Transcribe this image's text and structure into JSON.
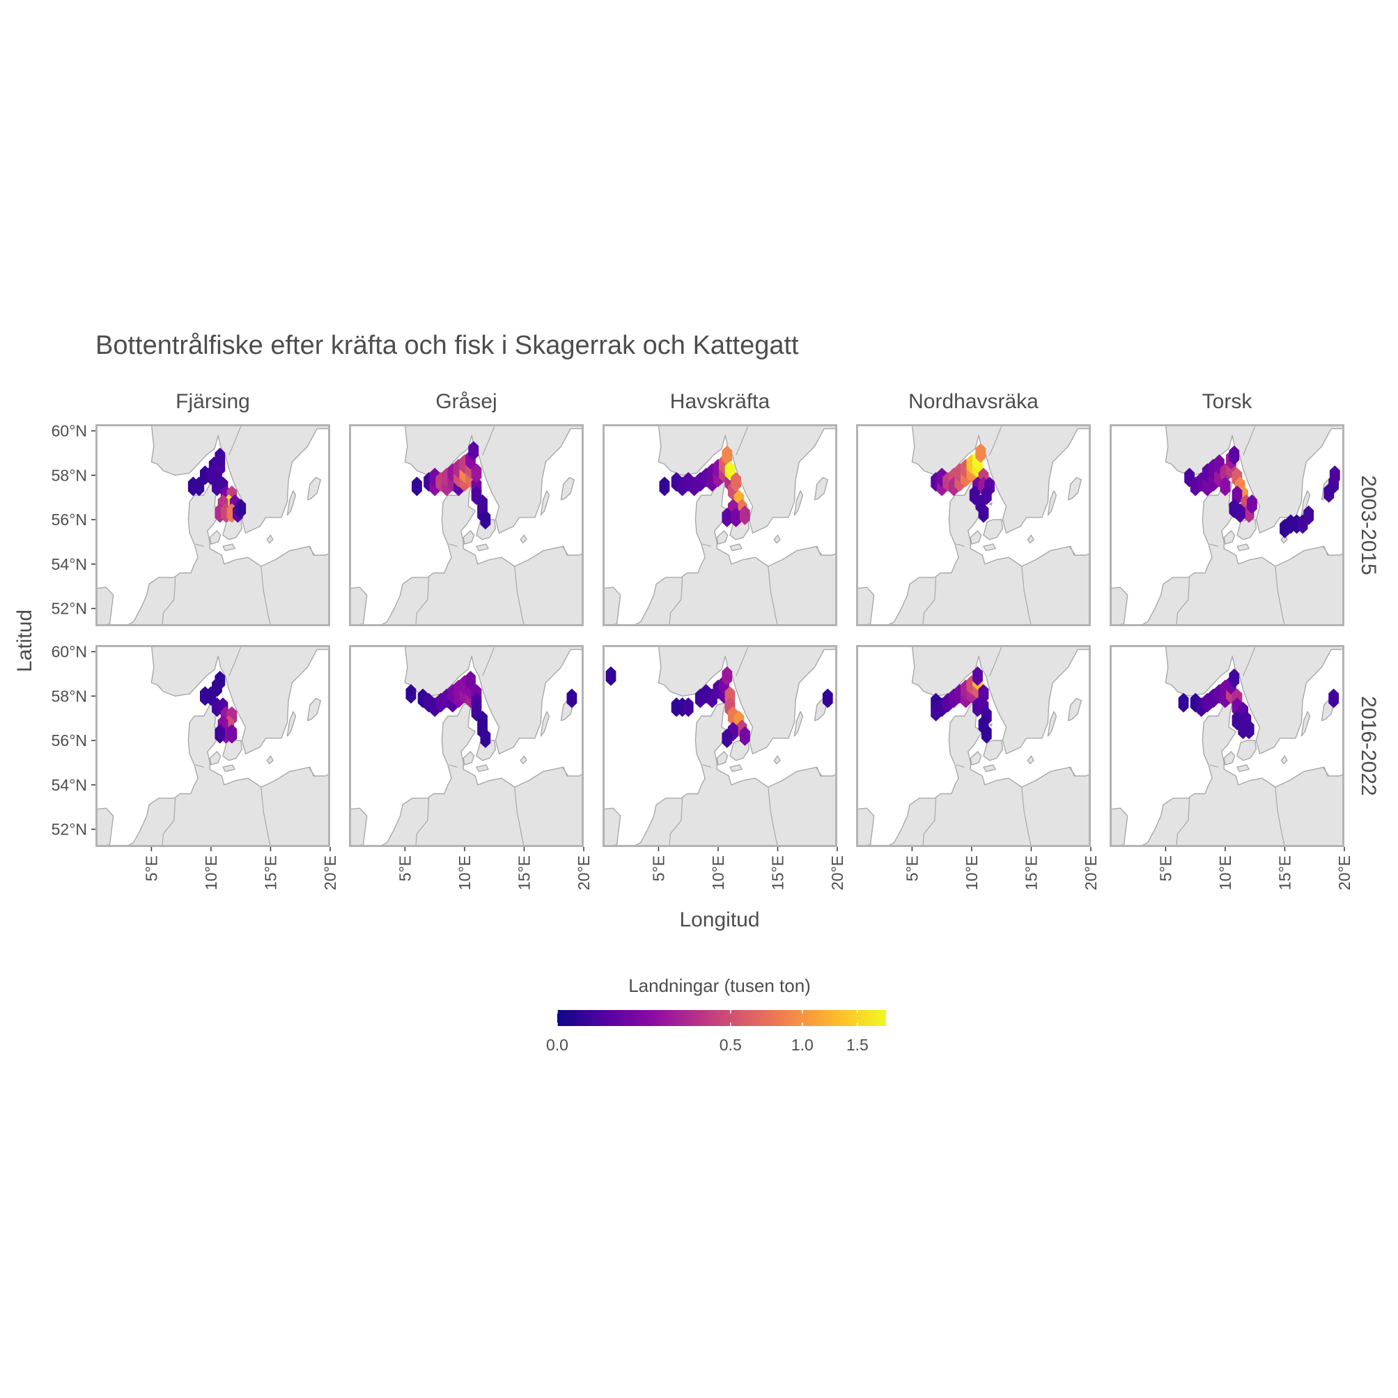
{
  "title": "Bottentrålfiske efter kräfta och fisk i Skagerrak och Kattegatt",
  "xlabel": "Longitud",
  "ylabel": "Latitud",
  "columns": [
    "Fjärsing",
    "Gråsej",
    "Havskräfta",
    "Nordhavsräka",
    "Torsk"
  ],
  "rows": [
    "2003-2015",
    "2016-2022"
  ],
  "x_ticks": [
    "5°E",
    "10°E",
    "15°E",
    "20°E"
  ],
  "y_ticks": [
    "52°N",
    "54°N",
    "56°N",
    "58°N",
    "60°N"
  ],
  "legend": {
    "title": "Landningar (tusen ton)",
    "tick_labels": [
      "0.0",
      "0.5",
      "1.0",
      "1.5"
    ]
  },
  "colors": {
    "land": "#e3e3e3",
    "coast": "#a8a8a8",
    "panel_border": "#b3b3b3",
    "text": "#4d4d4d",
    "scale": [
      "#0d0887",
      "#5302a3",
      "#8b0aa5",
      "#b83289",
      "#db5c68",
      "#f48849",
      "#febd2a",
      "#f0f921"
    ]
  },
  "chart_data": {
    "type": "heatmap",
    "map": "hexbin",
    "title": "Bottentrålfiske efter kräfta och fisk i Skagerrak och Kattegatt",
    "xlabel": "Longitud",
    "ylabel": "Latitud",
    "xlim": [
      0.3,
      20
    ],
    "ylim": [
      51.2,
      60.3
    ],
    "x_ticks": [
      5,
      10,
      15,
      20
    ],
    "y_ticks": [
      52,
      54,
      56,
      58,
      60
    ],
    "color_scale": {
      "name": "plasma",
      "transform": "sqrt",
      "range": [
        0,
        1.8
      ],
      "ticks": [
        0,
        0.5,
        1.0,
        1.5
      ]
    },
    "hex_size_deg": {
      "dx": 0.5,
      "dy": 0.44
    },
    "panels": [
      {
        "species": "Fjärsing",
        "period": "2003-2015",
        "cells": [
          [
            8.5,
            57.5,
            0.01
          ],
          [
            9.0,
            57.5,
            0.01
          ],
          [
            9.5,
            58.0,
            0.01
          ],
          [
            10.0,
            58.0,
            0.02
          ],
          [
            10.5,
            58.0,
            0.02
          ],
          [
            10.25,
            58.4,
            0.02
          ],
          [
            10.75,
            58.4,
            0.03
          ],
          [
            10.75,
            58.8,
            0.02
          ],
          [
            10.5,
            57.5,
            0.02
          ],
          [
            11.0,
            57.5,
            0.02
          ],
          [
            11.25,
            57.1,
            0.1
          ],
          [
            11.75,
            57.1,
            0.4
          ],
          [
            11.5,
            56.7,
            1.6
          ],
          [
            11.0,
            56.7,
            0.35
          ],
          [
            12.0,
            56.7,
            0.1
          ],
          [
            10.75,
            56.3,
            0.3
          ],
          [
            11.25,
            56.3,
            0.45
          ],
          [
            11.75,
            56.3,
            0.8
          ],
          [
            12.25,
            56.3,
            0.05
          ],
          [
            12.5,
            56.5,
            0.01
          ]
        ]
      },
      {
        "species": "Gråsej",
        "period": "2003-2015",
        "cells": [
          [
            6.0,
            57.5,
            0.01
          ],
          [
            7.0,
            57.7,
            0.02
          ],
          [
            7.5,
            57.5,
            0.15
          ],
          [
            7.5,
            57.9,
            0.1
          ],
          [
            8.0,
            57.7,
            0.4
          ],
          [
            8.5,
            57.5,
            0.3
          ],
          [
            8.5,
            57.9,
            0.35
          ],
          [
            9.0,
            57.7,
            0.25
          ],
          [
            9.0,
            58.1,
            0.2
          ],
          [
            9.5,
            57.5,
            0.05
          ],
          [
            9.5,
            57.9,
            0.5
          ],
          [
            9.5,
            58.3,
            0.3
          ],
          [
            10.0,
            57.7,
            0.6
          ],
          [
            10.0,
            58.1,
            0.9
          ],
          [
            10.0,
            58.5,
            0.4
          ],
          [
            10.5,
            57.9,
            0.7
          ],
          [
            10.5,
            58.3,
            0.5
          ],
          [
            10.5,
            58.7,
            0.15
          ],
          [
            10.75,
            59.1,
            0.05
          ],
          [
            11.0,
            57.5,
            0.1
          ],
          [
            11.0,
            58.1,
            0.2
          ],
          [
            11.0,
            57.1,
            0.03
          ],
          [
            11.5,
            56.7,
            0.02
          ],
          [
            11.5,
            56.3,
            0.02
          ],
          [
            11.75,
            56.0,
            0.01
          ]
        ]
      },
      {
        "species": "Havskräfta",
        "period": "2003-2015",
        "cells": [
          [
            5.5,
            57.5,
            0.01
          ],
          [
            6.5,
            57.7,
            0.02
          ],
          [
            7.0,
            57.5,
            0.03
          ],
          [
            7.5,
            57.7,
            0.04
          ],
          [
            8.0,
            57.5,
            0.05
          ],
          [
            8.5,
            57.7,
            0.05
          ],
          [
            9.0,
            57.9,
            0.06
          ],
          [
            9.5,
            57.7,
            0.1
          ],
          [
            9.5,
            58.1,
            0.08
          ],
          [
            10.0,
            57.9,
            0.2
          ],
          [
            10.0,
            58.3,
            0.15
          ],
          [
            10.5,
            58.1,
            0.4
          ],
          [
            10.5,
            58.5,
            0.6
          ],
          [
            10.75,
            58.9,
            0.9
          ],
          [
            11.0,
            57.7,
            0.3
          ],
          [
            11.0,
            58.2,
            1.8
          ],
          [
            11.25,
            57.3,
            0.5
          ],
          [
            11.5,
            57.7,
            0.7
          ],
          [
            11.75,
            56.9,
            1.2
          ],
          [
            12.0,
            56.5,
            0.8
          ],
          [
            11.25,
            56.5,
            0.2
          ],
          [
            10.75,
            56.1,
            0.05
          ],
          [
            11.5,
            56.1,
            0.1
          ],
          [
            12.25,
            56.2,
            0.3
          ]
        ]
      },
      {
        "species": "Nordhavsräka",
        "period": "2003-2015",
        "cells": [
          [
            7.0,
            57.7,
            0.05
          ],
          [
            7.5,
            57.5,
            0.2
          ],
          [
            7.5,
            57.9,
            0.1
          ],
          [
            8.0,
            57.7,
            0.4
          ],
          [
            8.5,
            57.9,
            0.5
          ],
          [
            8.5,
            57.5,
            0.3
          ],
          [
            9.0,
            57.7,
            0.6
          ],
          [
            9.0,
            58.1,
            0.5
          ],
          [
            9.5,
            57.9,
            0.8
          ],
          [
            9.5,
            58.3,
            0.6
          ],
          [
            10.0,
            58.1,
            1.0
          ],
          [
            10.0,
            58.5,
            1.4
          ],
          [
            10.5,
            58.3,
            1.7
          ],
          [
            10.5,
            58.7,
            1.8
          ],
          [
            10.75,
            59.0,
            0.9
          ],
          [
            11.0,
            57.9,
            0.4
          ],
          [
            10.5,
            57.5,
            0.1
          ],
          [
            11.0,
            57.5,
            0.2
          ],
          [
            11.5,
            57.5,
            0.05
          ],
          [
            11.25,
            57.1,
            0.03
          ],
          [
            10.75,
            56.7,
            0.02
          ],
          [
            11.0,
            56.3,
            0.02
          ],
          [
            10.25,
            57.1,
            0.02
          ]
        ]
      },
      {
        "species": "Torsk",
        "period": "2003-2015",
        "cells": [
          [
            7.0,
            57.9,
            0.03
          ],
          [
            7.5,
            57.5,
            0.05
          ],
          [
            8.0,
            57.7,
            0.06
          ],
          [
            8.5,
            57.5,
            0.1
          ],
          [
            8.5,
            58.1,
            0.05
          ],
          [
            9.0,
            57.7,
            0.1
          ],
          [
            9.0,
            58.3,
            0.08
          ],
          [
            9.5,
            57.9,
            0.2
          ],
          [
            9.5,
            58.5,
            0.1
          ],
          [
            10.0,
            58.1,
            0.3
          ],
          [
            10.0,
            57.5,
            0.15
          ],
          [
            10.5,
            58.3,
            0.4
          ],
          [
            10.5,
            58.7,
            0.2
          ],
          [
            10.75,
            58.9,
            0.05
          ],
          [
            11.0,
            57.9,
            0.6
          ],
          [
            11.25,
            57.5,
            0.9
          ],
          [
            11.5,
            57.1,
            1.0
          ],
          [
            11.0,
            57.1,
            0.1
          ],
          [
            11.75,
            56.7,
            0.5
          ],
          [
            12.0,
            56.3,
            0.3
          ],
          [
            11.25,
            56.3,
            0.03
          ],
          [
            10.75,
            56.5,
            0.02
          ],
          [
            12.25,
            56.7,
            0.1
          ],
          [
            15.0,
            55.6,
            0.01
          ],
          [
            15.5,
            55.8,
            0.01
          ],
          [
            16.0,
            55.8,
            0.01
          ],
          [
            16.5,
            55.8,
            0.02
          ],
          [
            17.0,
            56.2,
            0.02
          ],
          [
            18.7,
            57.2,
            0.02
          ],
          [
            19.1,
            57.6,
            0.02
          ],
          [
            19.2,
            58.0,
            0.03
          ]
        ]
      },
      {
        "species": "Fjärsing",
        "period": "2016-2022",
        "cells": [
          [
            9.5,
            58.0,
            0.01
          ],
          [
            10.0,
            58.0,
            0.01
          ],
          [
            10.5,
            58.4,
            0.01
          ],
          [
            10.75,
            58.7,
            0.01
          ],
          [
            10.5,
            57.5,
            0.02
          ],
          [
            11.0,
            57.5,
            0.03
          ],
          [
            11.25,
            57.1,
            0.2
          ],
          [
            11.75,
            57.1,
            0.3
          ],
          [
            11.5,
            56.7,
            0.5
          ],
          [
            11.0,
            56.7,
            0.15
          ],
          [
            11.25,
            56.3,
            0.15
          ],
          [
            11.75,
            56.3,
            0.1
          ],
          [
            10.75,
            56.3,
            0.02
          ]
        ]
      },
      {
        "species": "Gråsej",
        "period": "2016-2022",
        "cells": [
          [
            5.5,
            58.1,
            0.01
          ],
          [
            6.5,
            57.9,
            0.01
          ],
          [
            7.0,
            57.7,
            0.02
          ],
          [
            7.5,
            57.5,
            0.02
          ],
          [
            8.0,
            57.7,
            0.05
          ],
          [
            8.5,
            57.9,
            0.06
          ],
          [
            9.0,
            57.7,
            0.04
          ],
          [
            9.0,
            58.1,
            0.1
          ],
          [
            9.5,
            57.9,
            0.15
          ],
          [
            9.5,
            58.3,
            0.15
          ],
          [
            10.0,
            58.1,
            0.2
          ],
          [
            10.0,
            58.5,
            0.15
          ],
          [
            10.5,
            57.9,
            0.25
          ],
          [
            10.5,
            58.3,
            0.15
          ],
          [
            10.5,
            58.7,
            0.1
          ],
          [
            11.0,
            58.1,
            0.1
          ],
          [
            11.0,
            57.7,
            0.03
          ],
          [
            11.0,
            57.3,
            0.02
          ],
          [
            11.5,
            56.9,
            0.01
          ],
          [
            11.5,
            56.5,
            0.01
          ],
          [
            11.75,
            56.1,
            0.01
          ],
          [
            19.0,
            57.9,
            0.01
          ]
        ]
      },
      {
        "species": "Havskräfta",
        "period": "2016-2022",
        "cells": [
          [
            1.0,
            58.9,
            0.01
          ],
          [
            6.5,
            57.5,
            0.01
          ],
          [
            7.0,
            57.5,
            0.01
          ],
          [
            7.5,
            57.5,
            0.02
          ],
          [
            8.5,
            57.9,
            0.02
          ],
          [
            9.0,
            58.1,
            0.02
          ],
          [
            9.5,
            57.9,
            0.03
          ],
          [
            10.0,
            58.3,
            0.04
          ],
          [
            10.5,
            58.1,
            0.06
          ],
          [
            10.5,
            58.5,
            0.1
          ],
          [
            10.75,
            58.9,
            0.2
          ],
          [
            11.0,
            58.0,
            0.6
          ],
          [
            11.0,
            57.5,
            0.5
          ],
          [
            11.25,
            57.1,
            0.8
          ],
          [
            11.75,
            56.9,
            1.0
          ],
          [
            12.0,
            56.5,
            0.4
          ],
          [
            11.25,
            56.4,
            0.05
          ],
          [
            10.75,
            56.1,
            0.02
          ],
          [
            12.25,
            56.2,
            0.1
          ],
          [
            19.2,
            57.9,
            0.01
          ]
        ]
      },
      {
        "species": "Nordhavsräka",
        "period": "2016-2022",
        "cells": [
          [
            7.0,
            57.7,
            0.01
          ],
          [
            7.0,
            57.3,
            0.02
          ],
          [
            7.5,
            57.5,
            0.02
          ],
          [
            8.0,
            57.7,
            0.05
          ],
          [
            8.5,
            57.9,
            0.08
          ],
          [
            9.0,
            58.1,
            0.1
          ],
          [
            9.5,
            57.9,
            0.2
          ],
          [
            9.5,
            58.3,
            0.25
          ],
          [
            10.0,
            58.1,
            0.3
          ],
          [
            10.0,
            58.5,
            0.5
          ],
          [
            10.5,
            58.3,
            0.6
          ],
          [
            10.5,
            58.7,
            1.3
          ],
          [
            10.5,
            58.9,
            0.05
          ],
          [
            11.0,
            58.1,
            0.05
          ],
          [
            10.5,
            57.5,
            0.03
          ],
          [
            11.0,
            57.5,
            0.04
          ],
          [
            11.25,
            57.1,
            0.02
          ],
          [
            11.0,
            56.7,
            0.01
          ],
          [
            11.25,
            56.3,
            0.01
          ]
        ]
      },
      {
        "species": "Torsk",
        "period": "2016-2022",
        "cells": [
          [
            6.5,
            57.7,
            0.01
          ],
          [
            7.5,
            57.7,
            0.01
          ],
          [
            8.0,
            57.5,
            0.02
          ],
          [
            8.5,
            57.7,
            0.05
          ],
          [
            9.0,
            57.9,
            0.05
          ],
          [
            9.5,
            58.1,
            0.06
          ],
          [
            10.0,
            58.3,
            0.1
          ],
          [
            10.0,
            57.9,
            0.1
          ],
          [
            10.5,
            58.1,
            0.4
          ],
          [
            10.5,
            58.5,
            0.1
          ],
          [
            10.75,
            58.8,
            0.02
          ],
          [
            11.0,
            57.9,
            0.3
          ],
          [
            11.0,
            57.5,
            0.1
          ],
          [
            11.5,
            57.3,
            0.05
          ],
          [
            11.75,
            56.9,
            0.03
          ],
          [
            11.5,
            56.5,
            0.02
          ],
          [
            12.0,
            56.5,
            0.02
          ],
          [
            11.0,
            56.9,
            0.02
          ],
          [
            19.1,
            57.9,
            0.02
          ]
        ]
      }
    ]
  }
}
